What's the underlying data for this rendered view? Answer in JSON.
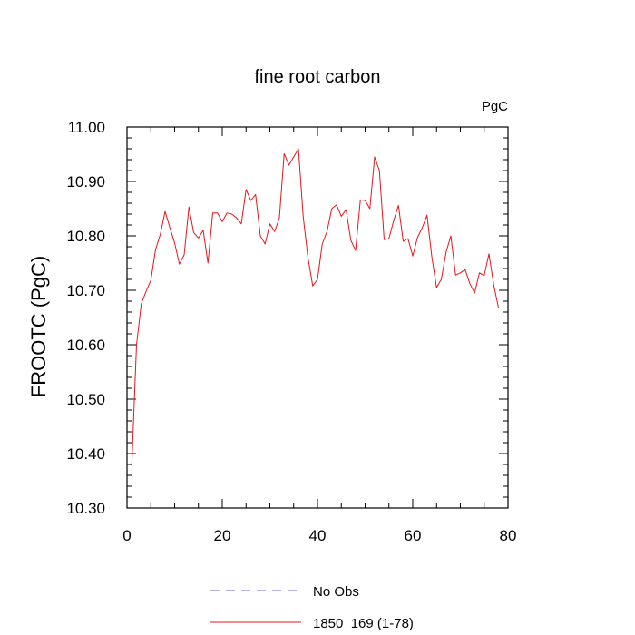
{
  "chart_data": {
    "type": "line",
    "title": "fine root carbon",
    "units_label": "PgC",
    "xlabel": "",
    "ylabel": "FROOTC  (PgC)",
    "xlim": [
      0,
      80
    ],
    "ylim": [
      10.3,
      11.0
    ],
    "x_ticks": [
      0,
      20,
      40,
      60,
      80
    ],
    "y_ticks": [
      10.3,
      10.4,
      10.5,
      10.6,
      10.7,
      10.8,
      10.9,
      11.0
    ],
    "x_tick_labels": [
      "0",
      "20",
      "40",
      "60",
      "80"
    ],
    "y_tick_labels": [
      "10.30",
      "10.40",
      "10.50",
      "10.60",
      "10.70",
      "10.80",
      "10.90",
      "11.00"
    ],
    "grid": false,
    "legend_position": "bottom-center",
    "series": [
      {
        "name": "No Obs",
        "color": "#6b6bd6",
        "dash": "dashed",
        "x": [],
        "values": []
      },
      {
        "name": "1850_169 (1-78)",
        "color": "#e8141a",
        "dash": "solid",
        "x": [
          1,
          2,
          3,
          4,
          5,
          6,
          7,
          8,
          9,
          10,
          11,
          12,
          13,
          14,
          15,
          16,
          17,
          18,
          19,
          20,
          21,
          22,
          23,
          24,
          25,
          26,
          27,
          28,
          29,
          30,
          31,
          32,
          33,
          34,
          35,
          36,
          37,
          38,
          39,
          40,
          41,
          42,
          43,
          44,
          45,
          46,
          47,
          48,
          49,
          50,
          51,
          52,
          53,
          54,
          55,
          56,
          57,
          58,
          59,
          60,
          61,
          62,
          63,
          64,
          65,
          66,
          67,
          68,
          69,
          70,
          71,
          72,
          73,
          74,
          75,
          76,
          77,
          78
        ],
        "values": [
          10.378,
          10.6,
          10.675,
          10.698,
          10.718,
          10.775,
          10.803,
          10.845,
          10.815,
          10.787,
          10.748,
          10.765,
          10.853,
          10.806,
          10.796,
          10.81,
          10.75,
          10.842,
          10.842,
          10.826,
          10.842,
          10.84,
          10.833,
          10.822,
          10.885,
          10.865,
          10.876,
          10.8,
          10.785,
          10.822,
          10.808,
          10.833,
          10.951,
          10.93,
          10.945,
          10.96,
          10.835,
          10.76,
          10.708,
          10.72,
          10.785,
          10.808,
          10.85,
          10.857,
          10.836,
          10.848,
          10.792,
          10.773,
          10.866,
          10.865,
          10.85,
          10.945,
          10.92,
          10.793,
          10.795,
          10.828,
          10.856,
          10.79,
          10.795,
          10.763,
          10.797,
          10.815,
          10.838,
          10.762,
          10.705,
          10.72,
          10.77,
          10.8,
          10.728,
          10.732,
          10.738,
          10.712,
          10.695,
          10.732,
          10.727,
          10.767,
          10.71,
          10.668
        ]
      }
    ]
  }
}
